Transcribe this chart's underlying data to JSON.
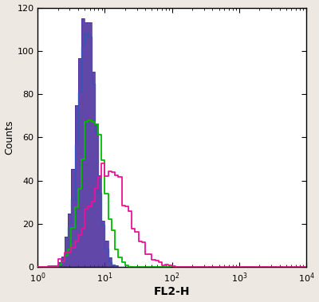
{
  "title": "",
  "xlabel": "FL2-H",
  "ylabel": "Counts",
  "xlim": [
    1,
    10000
  ],
  "ylim": [
    0,
    120
  ],
  "yticks": [
    0,
    20,
    40,
    60,
    80,
    100,
    120
  ],
  "xticks": [
    1,
    10,
    100,
    1000,
    10000
  ],
  "background_color": "#ede9e2",
  "plot_bg_color": "#ffffff",
  "shaded_color": "#4a2d9c",
  "shaded_alpha": 0.88,
  "blue_color": "#3355bb",
  "isotype_color": "#00bb00",
  "antibody_color": "#ee1199",
  "shaded_peak_log": 0.72,
  "shaded_peak_count": 115,
  "shaded_spread": 0.14,
  "isotype_peak_log": 0.82,
  "isotype_peak_count": 68,
  "isotype_spread": 0.17,
  "antibody_peak_log": 1.05,
  "antibody_peak_count": 48,
  "antibody_spread": 0.3,
  "blue_peak_log": 0.73,
  "blue_peak_count": 108,
  "blue_spread": 0.13,
  "n_bins": 80,
  "figsize": [
    4.0,
    3.79
  ],
  "dpi": 100
}
